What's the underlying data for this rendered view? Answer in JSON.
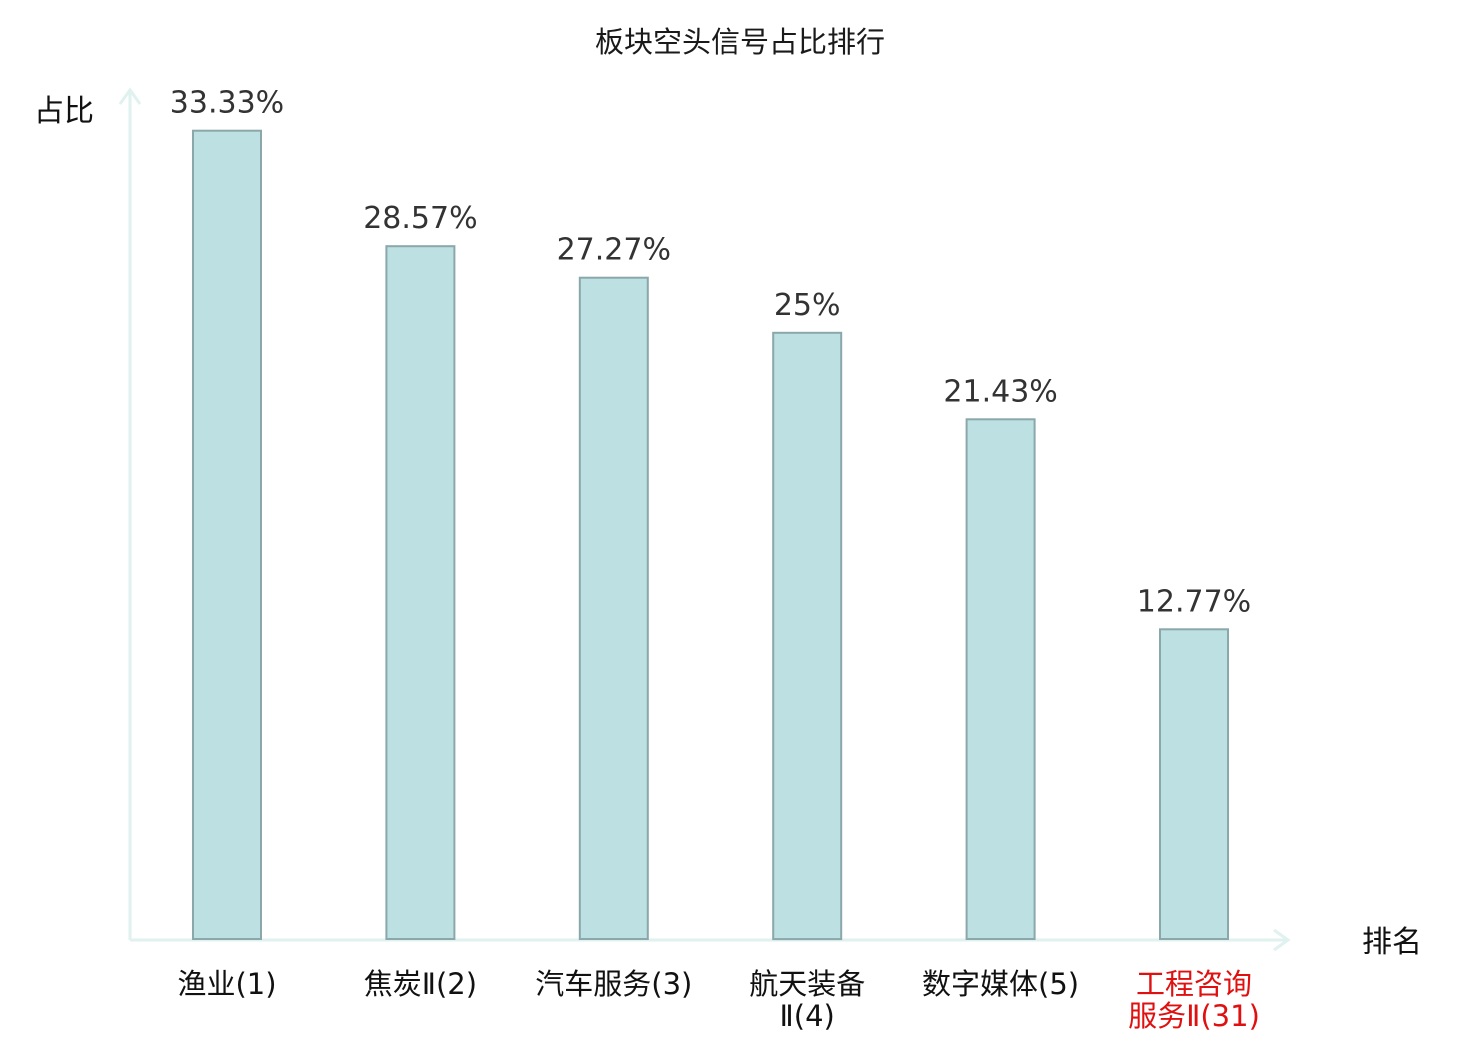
{
  "chart_data": {
    "type": "bar",
    "title": "板块空头信号占比排行",
    "ylabel": "占比",
    "xlabel": "排名",
    "ylim": [
      0,
      35
    ],
    "grid": false,
    "categories": [
      [
        "渔业(1)"
      ],
      [
        "焦炭Ⅱ(2)"
      ],
      [
        "汽车服务(3)"
      ],
      [
        "航天装备",
        "Ⅱ(4)"
      ],
      [
        "数字媒体(5)"
      ],
      [
        "工程咨询",
        "服务Ⅱ(31)"
      ]
    ],
    "values": [
      33.33,
      28.57,
      27.27,
      25,
      21.43,
      12.77
    ],
    "value_labels": [
      "33.33%",
      "28.57%",
      "27.27%",
      "25%",
      "21.43%",
      "12.77%"
    ],
    "highlight_index": 5,
    "colors": {
      "bar_fill": "#bde0e2",
      "bar_stroke": "#8aa7aa",
      "axis": "#e0f2ef",
      "category_text": "#111111",
      "highlight_text": "#e01010"
    }
  }
}
